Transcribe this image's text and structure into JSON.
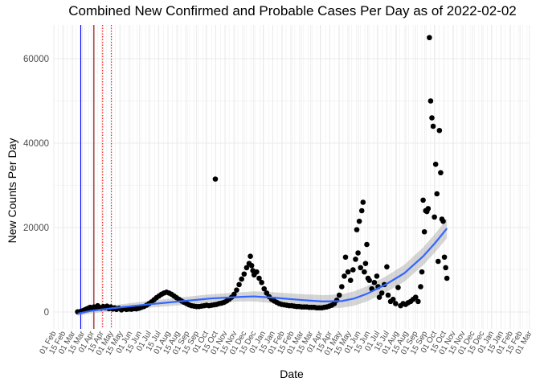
{
  "chart_data": {
    "type": "scatter",
    "title": "Combined New Confirmed and Probable Cases Per Day as of 2022-02-02",
    "xlabel": "Date",
    "ylabel": "New Counts Per Day",
    "x_domain_days": [
      0,
      760
    ],
    "ylim": [
      -4000,
      68000
    ],
    "y_ticks": [
      0,
      20000,
      40000,
      60000
    ],
    "x_tick_labels": [
      "01 Feb",
      "15 Feb",
      "01 Mar",
      "15 Mar",
      "01 Apr",
      "15 Apr",
      "01 May",
      "15 May",
      "01 Jun",
      "15 Jun",
      "01 Jul",
      "15 Jul",
      "01 Aug",
      "15 Aug",
      "01 Sep",
      "15 Sep",
      "01 Oct",
      "15 Oct",
      "01 Nov",
      "15 Nov",
      "01 Dec",
      "15 Dec",
      "01 Jan",
      "15 Jan",
      "01 Feb",
      "15 Feb",
      "01 Mar",
      "15 Mar",
      "01 Apr",
      "15 Apr",
      "01 May",
      "15 May",
      "01 Jun",
      "15 Jun",
      "01 Jul",
      "15 Jul",
      "01 Aug",
      "15 Aug",
      "01 Sep",
      "15 Sep",
      "01 Oct",
      "15 Oct",
      "01 Nov",
      "15 Nov",
      "01 Dec",
      "15 Dec",
      "01 Jan",
      "15 Jan",
      "01 Feb",
      "15 Feb",
      "01 Mar"
    ],
    "reference_lines": [
      {
        "name": "blue-line",
        "day": 43,
        "color": "#0000ff",
        "style": "solid"
      },
      {
        "name": "red-line",
        "day": 64,
        "color": "#8b0000",
        "style": "solid"
      },
      {
        "name": "red-dotted-line-1",
        "day": 78,
        "color": "#ff0000",
        "style": "dotted"
      },
      {
        "name": "red-dotted-line-2",
        "day": 92,
        "color": "#ff0000",
        "style": "dotted"
      }
    ],
    "points": [
      [
        38,
        50
      ],
      [
        43,
        150
      ],
      [
        46,
        300
      ],
      [
        49,
        500
      ],
      [
        52,
        700
      ],
      [
        55,
        900
      ],
      [
        58,
        1100
      ],
      [
        61,
        800
      ],
      [
        64,
        1200
      ],
      [
        67,
        900
      ],
      [
        70,
        1500
      ],
      [
        73,
        1100
      ],
      [
        76,
        900
      ],
      [
        79,
        1300
      ],
      [
        82,
        1000
      ],
      [
        85,
        1400
      ],
      [
        88,
        800
      ],
      [
        91,
        1200
      ],
      [
        94,
        700
      ],
      [
        97,
        1000
      ],
      [
        100,
        600
      ],
      [
        104,
        900
      ],
      [
        108,
        500
      ],
      [
        112,
        800
      ],
      [
        116,
        600
      ],
      [
        120,
        700
      ],
      [
        124,
        650
      ],
      [
        128,
        800
      ],
      [
        132,
        750
      ],
      [
        136,
        900
      ],
      [
        140,
        1100
      ],
      [
        144,
        1300
      ],
      [
        148,
        1600
      ],
      [
        152,
        2000
      ],
      [
        156,
        2400
      ],
      [
        160,
        2900
      ],
      [
        164,
        3400
      ],
      [
        168,
        3800
      ],
      [
        172,
        4200
      ],
      [
        176,
        4500
      ],
      [
        180,
        4700
      ],
      [
        184,
        4500
      ],
      [
        188,
        4200
      ],
      [
        192,
        3800
      ],
      [
        196,
        3400
      ],
      [
        200,
        3000
      ],
      [
        204,
        2600
      ],
      [
        208,
        2300
      ],
      [
        212,
        2000
      ],
      [
        216,
        1700
      ],
      [
        220,
        1500
      ],
      [
        224,
        1400
      ],
      [
        228,
        1300
      ],
      [
        232,
        1300
      ],
      [
        236,
        1400
      ],
      [
        240,
        1500
      ],
      [
        244,
        1600
      ],
      [
        248,
        1500
      ],
      [
        252,
        1600
      ],
      [
        256,
        1700
      ],
      [
        258,
        31500
      ],
      [
        260,
        1800
      ],
      [
        264,
        2000
      ],
      [
        268,
        2100
      ],
      [
        272,
        2300
      ],
      [
        276,
        2600
      ],
      [
        280,
        3000
      ],
      [
        284,
        3500
      ],
      [
        288,
        4200
      ],
      [
        292,
        5200
      ],
      [
        296,
        6500
      ],
      [
        300,
        7800
      ],
      [
        304,
        9000
      ],
      [
        308,
        10500
      ],
      [
        312,
        11500
      ],
      [
        314,
        13200
      ],
      [
        316,
        11000
      ],
      [
        318,
        9800
      ],
      [
        320,
        8800
      ],
      [
        324,
        9500
      ],
      [
        328,
        8000
      ],
      [
        332,
        7000
      ],
      [
        336,
        5500
      ],
      [
        340,
        4500
      ],
      [
        344,
        3600
      ],
      [
        348,
        3000
      ],
      [
        352,
        2600
      ],
      [
        356,
        2300
      ],
      [
        360,
        2000
      ],
      [
        364,
        1800
      ],
      [
        368,
        1700
      ],
      [
        372,
        1600
      ],
      [
        376,
        1500
      ],
      [
        380,
        1500
      ],
      [
        384,
        1400
      ],
      [
        388,
        1300
      ],
      [
        392,
        1300
      ],
      [
        396,
        1200
      ],
      [
        400,
        1200
      ],
      [
        404,
        1200
      ],
      [
        408,
        1100
      ],
      [
        412,
        1100
      ],
      [
        416,
        1100
      ],
      [
        420,
        1000
      ],
      [
        424,
        1000
      ],
      [
        428,
        1000
      ],
      [
        432,
        1100
      ],
      [
        436,
        1200
      ],
      [
        440,
        1400
      ],
      [
        444,
        1600
      ],
      [
        448,
        2000
      ],
      [
        452,
        2800
      ],
      [
        456,
        4000
      ],
      [
        460,
        6000
      ],
      [
        464,
        8500
      ],
      [
        466,
        13000
      ],
      [
        470,
        9500
      ],
      [
        474,
        7500
      ],
      [
        478,
        10000
      ],
      [
        482,
        12500
      ],
      [
        484,
        19500
      ],
      [
        486,
        14000
      ],
      [
        488,
        21500
      ],
      [
        490,
        10500
      ],
      [
        492,
        24000
      ],
      [
        494,
        26000
      ],
      [
        496,
        9500
      ],
      [
        498,
        11500
      ],
      [
        500,
        16000
      ],
      [
        502,
        8000
      ],
      [
        504,
        7500
      ],
      [
        508,
        5500
      ],
      [
        512,
        7000
      ],
      [
        516,
        8500
      ],
      [
        518,
        6000
      ],
      [
        520,
        3500
      ],
      [
        524,
        4500
      ],
      [
        528,
        6500
      ],
      [
        532,
        10700
      ],
      [
        534,
        4000
      ],
      [
        538,
        2500
      ],
      [
        542,
        3000
      ],
      [
        546,
        2000
      ],
      [
        550,
        5800
      ],
      [
        554,
        1500
      ],
      [
        558,
        2000
      ],
      [
        562,
        1800
      ],
      [
        566,
        2200
      ],
      [
        570,
        2500
      ],
      [
        574,
        3000
      ],
      [
        578,
        3500
      ],
      [
        582,
        2500
      ],
      [
        586,
        6000
      ],
      [
        588,
        9500
      ],
      [
        590,
        26500
      ],
      [
        592,
        19000
      ],
      [
        594,
        24000
      ],
      [
        596,
        23800
      ],
      [
        598,
        24500
      ],
      [
        600,
        65000
      ],
      [
        602,
        50000
      ],
      [
        604,
        46000
      ],
      [
        606,
        44000
      ],
      [
        608,
        22500
      ],
      [
        610,
        35000
      ],
      [
        612,
        28000
      ],
      [
        614,
        12000
      ],
      [
        616,
        43000
      ],
      [
        618,
        33000
      ],
      [
        620,
        22000
      ],
      [
        622,
        21500
      ],
      [
        624,
        13000
      ],
      [
        626,
        10500
      ],
      [
        628,
        8000
      ]
    ],
    "trend": [
      [
        38,
        -400
      ],
      [
        60,
        300
      ],
      [
        100,
        1000
      ],
      [
        150,
        1800
      ],
      [
        200,
        2500
      ],
      [
        250,
        3200
      ],
      [
        300,
        3600
      ],
      [
        320,
        3700
      ],
      [
        350,
        3400
      ],
      [
        400,
        2800
      ],
      [
        430,
        2500
      ],
      [
        460,
        2600
      ],
      [
        480,
        3200
      ],
      [
        500,
        4300
      ],
      [
        530,
        6500
      ],
      [
        560,
        9200
      ],
      [
        590,
        13200
      ],
      [
        610,
        16500
      ],
      [
        628,
        19800
      ]
    ]
  }
}
